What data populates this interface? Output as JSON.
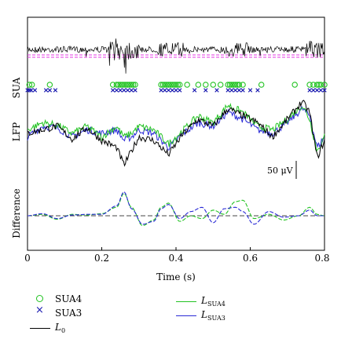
{
  "chart_data": {
    "type": "line",
    "xlabel": "Time (s)",
    "xlim": [
      0,
      0.8
    ],
    "x_ticks": [
      "0",
      "0.2",
      "0.4",
      "0.6",
      "0.8"
    ],
    "panels": [
      {
        "name": "SUA_trace",
        "ylabel": "",
        "description_visible": "raw high-pass signal with threshold lines"
      },
      {
        "name": "SUA",
        "ylabel": "SUA"
      },
      {
        "name": "LFP",
        "ylabel": "LFP",
        "scale_bar": "50 μV"
      },
      {
        "name": "Difference",
        "ylabel": "Difference"
      }
    ],
    "spikes": {
      "SUA4": [
        0.005,
        0.012,
        0.06,
        0.23,
        0.24,
        0.245,
        0.25,
        0.255,
        0.26,
        0.265,
        0.27,
        0.275,
        0.28,
        0.285,
        0.29,
        0.36,
        0.365,
        0.37,
        0.375,
        0.38,
        0.385,
        0.39,
        0.395,
        0.4,
        0.405,
        0.41,
        0.43,
        0.46,
        0.48,
        0.5,
        0.52,
        0.54,
        0.545,
        0.55,
        0.555,
        0.56,
        0.565,
        0.57,
        0.58,
        0.63,
        0.72,
        0.76,
        0.77,
        0.78,
        0.785,
        0.79,
        0.8
      ],
      "SUA3": [
        0.0,
        0.005,
        0.01,
        0.02,
        0.05,
        0.06,
        0.075,
        0.23,
        0.24,
        0.25,
        0.26,
        0.27,
        0.28,
        0.29,
        0.36,
        0.37,
        0.38,
        0.39,
        0.4,
        0.41,
        0.45,
        0.48,
        0.51,
        0.54,
        0.55,
        0.56,
        0.57,
        0.58,
        0.6,
        0.62,
        0.76,
        0.77,
        0.78,
        0.79,
        0.8
      ]
    },
    "lfp": {
      "x": [
        0,
        0.04,
        0.08,
        0.12,
        0.16,
        0.2,
        0.24,
        0.26,
        0.28,
        0.3,
        0.34,
        0.38,
        0.42,
        0.46,
        0.5,
        0.54,
        0.58,
        0.62,
        0.66,
        0.7,
        0.74,
        0.76,
        0.78,
        0.8
      ],
      "series": [
        {
          "name": "L0",
          "color": "#000000",
          "values": [
            0,
            5,
            10,
            -8,
            8,
            -10,
            -20,
            -45,
            -25,
            -5,
            -10,
            -30,
            0,
            20,
            10,
            35,
            25,
            15,
            -5,
            20,
            45,
            30,
            -35,
            -10
          ]
        },
        {
          "name": "LSUA4",
          "color": "#22c322",
          "values": [
            5,
            15,
            12,
            0,
            10,
            -5,
            10,
            -5,
            0,
            10,
            5,
            -15,
            5,
            25,
            15,
            40,
            30,
            10,
            5,
            20,
            40,
            20,
            -25,
            -5
          ]
        },
        {
          "name": "LSUA3",
          "color": "#2a2ad6",
          "values": [
            -5,
            10,
            8,
            -5,
            5,
            0,
            5,
            -10,
            -5,
            5,
            0,
            -20,
            0,
            15,
            10,
            30,
            20,
            5,
            0,
            15,
            35,
            25,
            -20,
            -5
          ]
        }
      ]
    },
    "difference": {
      "x": [
        0,
        0.04,
        0.08,
        0.12,
        0.16,
        0.2,
        0.24,
        0.26,
        0.28,
        0.31,
        0.34,
        0.36,
        0.38,
        0.41,
        0.44,
        0.47,
        0.5,
        0.53,
        0.56,
        0.58,
        0.61,
        0.65,
        0.69,
        0.73,
        0.76,
        0.78,
        0.8
      ],
      "series": [
        {
          "name": "LSUA4 - L0",
          "color": "#22c322",
          "values": [
            0,
            0.1,
            -0.25,
            0.1,
            0.05,
            0.15,
            0.6,
            1.6,
            0.6,
            -0.7,
            -0.3,
            0.6,
            0.9,
            -0.4,
            0.0,
            -0.2,
            0.4,
            0.1,
            1.0,
            1.1,
            -0.2,
            0.1,
            -0.3,
            0.0,
            0.6,
            0.1,
            0.0
          ]
        },
        {
          "name": "LSUA3 - L0",
          "color": "#2a2ad6",
          "values": [
            0,
            0.15,
            -0.2,
            0.05,
            0.1,
            0.1,
            0.7,
            1.7,
            0.5,
            -0.6,
            -0.4,
            0.5,
            0.8,
            -0.2,
            0.3,
            0.6,
            -0.5,
            0.5,
            0.6,
            0.3,
            -0.6,
            0.3,
            -0.1,
            0.0,
            0.4,
            0.0,
            0.0
          ]
        }
      ],
      "baseline": 0
    },
    "legend": {
      "placement": "bottom",
      "items": [
        {
          "label": "SUA4",
          "marker": "circle",
          "color": "#22c322"
        },
        {
          "label": "SUA3",
          "marker": "cross",
          "color": "#1a1ab0"
        },
        {
          "label_main": "L",
          "label_sub": "0",
          "marker": "line",
          "color": "#000000"
        },
        {
          "label_main": "L",
          "label_sub": "SUA4",
          "marker": "line",
          "color": "#22c322"
        },
        {
          "label_main": "L",
          "label_sub": "SUA3",
          "marker": "line",
          "color": "#2a2ad6"
        }
      ]
    }
  }
}
